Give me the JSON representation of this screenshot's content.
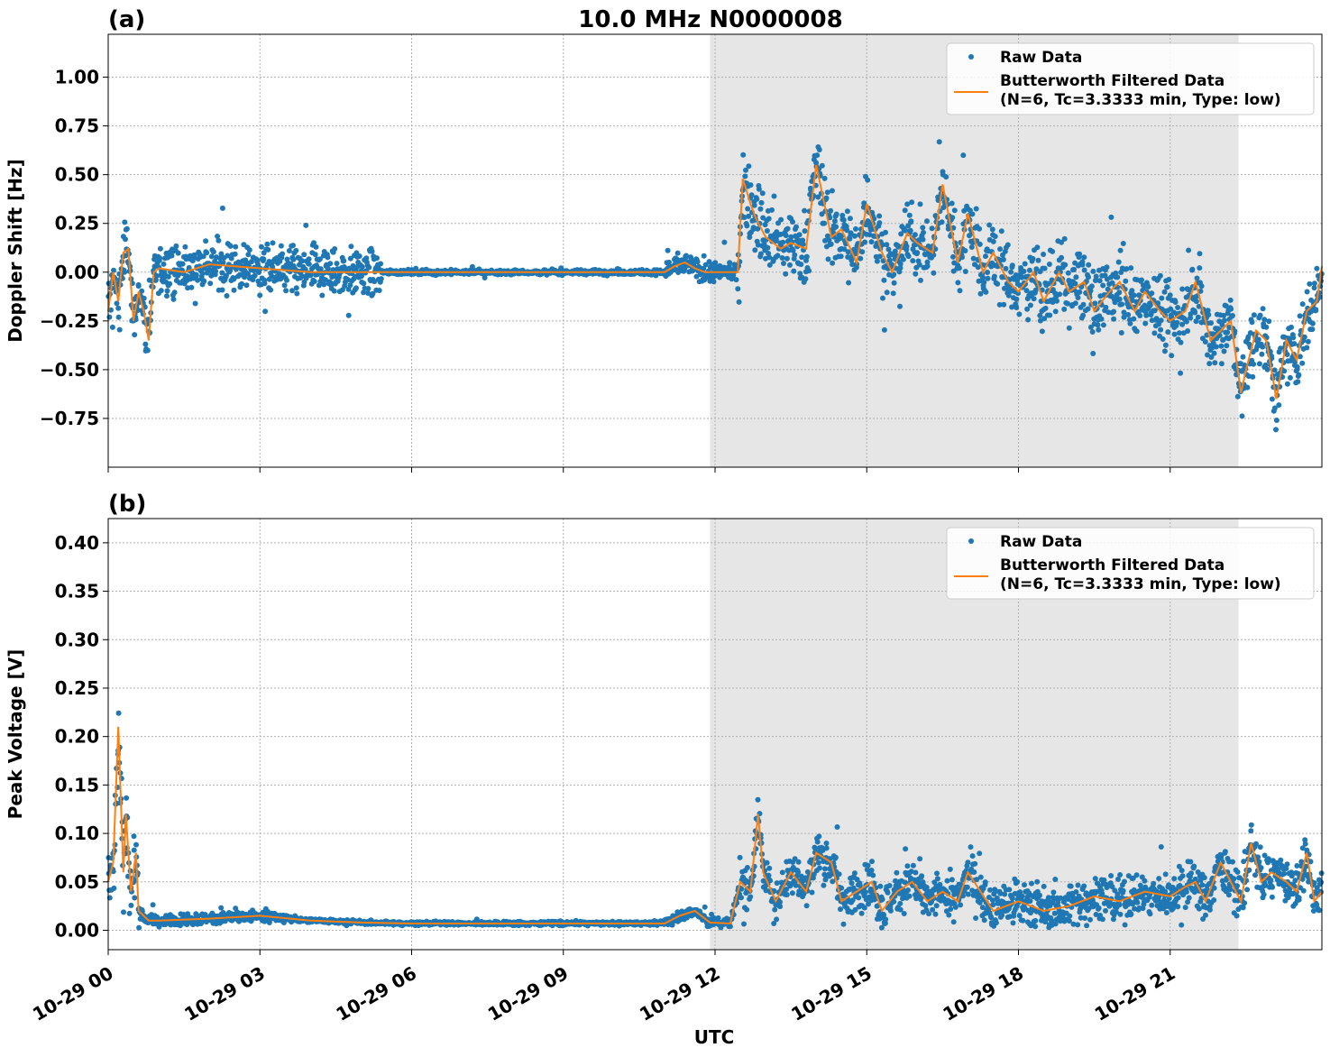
{
  "chart_data": {
    "type": "scatter",
    "title": "10.0 MHz N0000008",
    "xlabel": "UTC",
    "x_tick_labels": [
      "10-29 00",
      "10-29 03",
      "10-29 06",
      "10-29 09",
      "10-29 12",
      "10-29 15",
      "10-29 18",
      "10-29 21"
    ],
    "x_ticks_hours": [
      0,
      3,
      6,
      9,
      12,
      15,
      18,
      21
    ],
    "xlim_hours": [
      0,
      24
    ],
    "shaded_region_hours": [
      11.9,
      22.35
    ],
    "panels": [
      {
        "label": "(a)",
        "ylabel": "Doppler Shift [Hz]",
        "ylim": [
          -1.0,
          1.22
        ],
        "yticks": [
          -0.75,
          -0.5,
          -0.25,
          0.0,
          0.25,
          0.5,
          0.75,
          1.0
        ],
        "ytick_labels": [
          "−0.75",
          "−0.50",
          "−0.25",
          "0.00",
          "0.25",
          "0.50",
          "0.75",
          "1.00"
        ],
        "legend": [
          "Raw Data",
          "Butterworth Filtered Data",
          "(N=6, Tc=3.3333 min, Type: low)"
        ],
        "filtered_series": {
          "hours": [
            0,
            0.1,
            0.2,
            0.3,
            0.4,
            0.5,
            0.6,
            0.7,
            0.8,
            0.9,
            1.0,
            1.5,
            2.0,
            2.5,
            3.0,
            3.5,
            4.0,
            5.0,
            6.0,
            7.0,
            8.0,
            9.0,
            10.0,
            11.0,
            11.2,
            11.4,
            11.6,
            11.8,
            12.0,
            12.2,
            12.35,
            12.45,
            12.55,
            12.7,
            12.8,
            13.0,
            13.3,
            13.5,
            13.8,
            14.0,
            14.3,
            14.5,
            14.8,
            15.0,
            15.3,
            15.5,
            15.8,
            16.0,
            16.3,
            16.5,
            16.8,
            17.0,
            17.3,
            17.5,
            17.8,
            18.0,
            18.3,
            18.5,
            18.8,
            19.0,
            19.3,
            19.5,
            19.8,
            20.0,
            20.3,
            20.5,
            20.8,
            21.0,
            21.3,
            21.5,
            21.8,
            22.0,
            22.2,
            22.4,
            22.5,
            22.7,
            22.9,
            23.1,
            23.3,
            23.5,
            23.7,
            23.9,
            24.0
          ],
          "values": [
            -0.2,
            0.0,
            -0.15,
            0.1,
            0.12,
            -0.25,
            -0.1,
            -0.2,
            -0.35,
            0.0,
            0.02,
            0.0,
            0.04,
            0.03,
            0.02,
            0.01,
            0.0,
            0.0,
            0.0,
            0.0,
            0.0,
            0.0,
            0.0,
            0.0,
            0.03,
            0.05,
            0.02,
            0.0,
            0.0,
            0.0,
            0.0,
            0.0,
            0.48,
            0.35,
            0.28,
            0.18,
            0.12,
            0.15,
            0.12,
            0.55,
            0.18,
            0.22,
            0.05,
            0.35,
            0.1,
            0.0,
            0.2,
            0.15,
            0.1,
            0.45,
            0.05,
            0.3,
            0.0,
            0.1,
            -0.05,
            -0.1,
            0.0,
            -0.15,
            0.0,
            -0.1,
            -0.05,
            -0.2,
            -0.1,
            -0.05,
            -0.2,
            -0.1,
            -0.2,
            -0.25,
            -0.2,
            -0.05,
            -0.35,
            -0.3,
            -0.25,
            -0.62,
            -0.5,
            -0.3,
            -0.35,
            -0.65,
            -0.35,
            -0.45,
            -0.2,
            -0.15,
            0.03
          ]
        }
      },
      {
        "label": "(b)",
        "ylabel": "Peak Voltage [V]",
        "ylim": [
          -0.02,
          0.425
        ],
        "yticks": [
          0.0,
          0.05,
          0.1,
          0.15,
          0.2,
          0.25,
          0.3,
          0.35,
          0.4
        ],
        "ytick_labels": [
          "0.00",
          "0.05",
          "0.10",
          "0.15",
          "0.20",
          "0.25",
          "0.30",
          "0.35",
          "0.40"
        ],
        "legend": [
          "Raw Data",
          "Butterworth Filtered Data",
          "(N=6, Tc=3.3333 min, Type: low)"
        ],
        "filtered_series": {
          "hours": [
            0,
            0.1,
            0.2,
            0.3,
            0.35,
            0.45,
            0.55,
            0.6,
            0.8,
            1.0,
            2.0,
            3.0,
            4.0,
            5.0,
            6.0,
            8.0,
            10.0,
            11.0,
            11.3,
            11.6,
            11.9,
            12.3,
            12.5,
            12.7,
            12.85,
            12.95,
            13.2,
            13.5,
            13.8,
            14.0,
            14.3,
            14.5,
            14.8,
            15.1,
            15.3,
            15.6,
            15.9,
            16.2,
            16.5,
            16.8,
            17.0,
            17.5,
            18.0,
            18.5,
            19.0,
            19.5,
            20.0,
            20.5,
            21.0,
            21.3,
            21.5,
            21.7,
            22.0,
            22.2,
            22.4,
            22.6,
            22.8,
            23.0,
            23.3,
            23.5,
            23.7,
            23.85,
            24.0
          ],
          "values": [
            0.05,
            0.07,
            0.21,
            0.06,
            0.12,
            0.04,
            0.08,
            0.02,
            0.01,
            0.01,
            0.012,
            0.015,
            0.01,
            0.008,
            0.007,
            0.007,
            0.007,
            0.007,
            0.015,
            0.02,
            0.008,
            0.007,
            0.05,
            0.04,
            0.12,
            0.06,
            0.03,
            0.06,
            0.04,
            0.08,
            0.07,
            0.03,
            0.04,
            0.05,
            0.02,
            0.04,
            0.05,
            0.03,
            0.04,
            0.03,
            0.06,
            0.02,
            0.03,
            0.02,
            0.025,
            0.035,
            0.03,
            0.04,
            0.035,
            0.045,
            0.05,
            0.03,
            0.07,
            0.05,
            0.03,
            0.09,
            0.05,
            0.06,
            0.05,
            0.04,
            0.08,
            0.03,
            0.04
          ]
        }
      }
    ]
  },
  "colors": {
    "raw": "#1f77b4",
    "filtered": "#ff7f0e",
    "shade": "#e6e6e6",
    "grid": "#b0b0b0"
  }
}
